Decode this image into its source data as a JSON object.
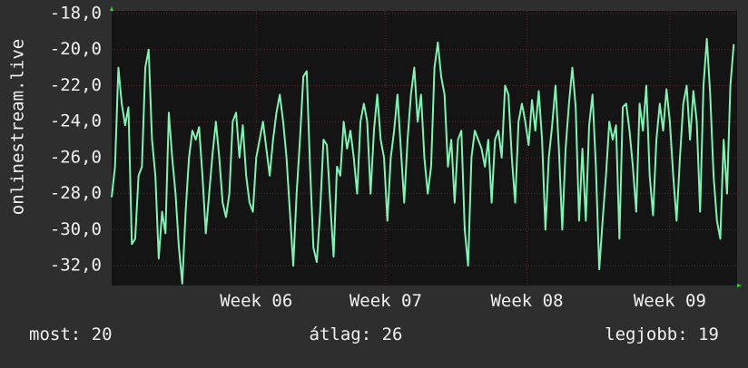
{
  "chart_data": {
    "type": "line",
    "y_label": "onlinestream.live",
    "color": "#7ff2b4",
    "ylim": [
      -33.1,
      -18
    ],
    "yticks": [
      {
        "value": -18,
        "label": "-18,0"
      },
      {
        "value": -20,
        "label": "-20,0"
      },
      {
        "value": -22,
        "label": "-22,0"
      },
      {
        "value": -24,
        "label": "-24,0"
      },
      {
        "value": -26,
        "label": "-26,0"
      },
      {
        "value": -28,
        "label": "-28,0"
      },
      {
        "value": -30,
        "label": "-30,0"
      },
      {
        "value": -32,
        "label": "-32,0"
      }
    ],
    "xlim": [
      0,
      186
    ],
    "xticks": [
      {
        "value": 43,
        "label": "Week 06"
      },
      {
        "value": 81.5,
        "label": "Week 07"
      },
      {
        "value": 123.5,
        "label": "Week 08"
      },
      {
        "value": 166,
        "label": "Week 09"
      }
    ],
    "grid": true,
    "values": [
      -28.2,
      -26.5,
      -21,
      -23,
      -24.2,
      -23.2,
      -30.8,
      -30.5,
      -27,
      -26.5,
      -21,
      -20,
      -25,
      -27,
      -31.6,
      -29,
      -30.2,
      -23.5,
      -26,
      -28,
      -31,
      -33,
      -29,
      -26,
      -24.5,
      -25,
      -24.3,
      -27,
      -30.2,
      -28,
      -25.8,
      -24,
      -26,
      -28.5,
      -29.3,
      -28,
      -24,
      -23.5,
      -26,
      -24.2,
      -27,
      -28.5,
      -29,
      -26,
      -25,
      -24,
      -25.5,
      -27,
      -25,
      -23.5,
      -22.5,
      -24,
      -26,
      -29,
      -32,
      -28,
      -25,
      -21.5,
      -21.2,
      -26.5,
      -31,
      -31.8,
      -29,
      -25,
      -25.3,
      -28.5,
      -31.5,
      -26.5,
      -27,
      -24,
      -25.5,
      -24.5,
      -26,
      -28,
      -24,
      -23,
      -24,
      -28,
      -24.5,
      -22.5,
      -25,
      -26,
      -29.5,
      -26,
      -24.5,
      -22.5,
      -25.5,
      -28.5,
      -25,
      -22.5,
      -21,
      -24,
      -22.5,
      -26,
      -28,
      -26.5,
      -21,
      -19.6,
      -21.5,
      -22.5,
      -26.5,
      -25,
      -28.5,
      -25,
      -24.5,
      -30,
      -32,
      -26,
      -24.5,
      -25,
      -25.5,
      -26.5,
      -25,
      -28.5,
      -25,
      -24.5,
      -26,
      -22,
      -22.5,
      -26,
      -28.5,
      -24,
      -23,
      -24,
      -25.3,
      -22.8,
      -24.5,
      -22.3,
      -25,
      -30,
      -26,
      -24.2,
      -22,
      -25.5,
      -30,
      -25.5,
      -23,
      -21,
      -23.2,
      -29.5,
      -25.5,
      -29.5,
      -24.2,
      -22.5,
      -26.5,
      -32.2,
      -29.5,
      -27,
      -24,
      -25,
      -24.2,
      -30.5,
      -23.2,
      -23,
      -24.5,
      -26.5,
      -29,
      -23,
      -24.5,
      -22,
      -27,
      -29.2,
      -25,
      -23,
      -24.5,
      -22.2,
      -24,
      -27,
      -29.5,
      -26,
      -23,
      -22,
      -25,
      -22.3,
      -24,
      -29,
      -22,
      -19.4,
      -22.5,
      -27,
      -29.5,
      -30.5,
      -25,
      -28,
      -22,
      -19.7
    ],
    "stats": [
      "most: 20",
      "átlag: 26",
      "legjobb: 19"
    ]
  }
}
